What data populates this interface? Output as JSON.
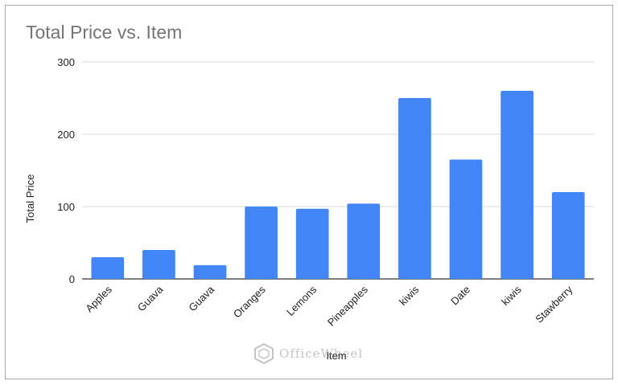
{
  "chart_data": {
    "type": "bar",
    "title": "Total Price vs. Item",
    "xlabel": "Item",
    "ylabel": "Total Price",
    "categories": [
      "Apples",
      "Guava",
      "Guava",
      "Oranges",
      "Lemons",
      "Pineapples",
      "kiwis",
      "Date",
      "kiwis",
      "Stawberry"
    ],
    "values": [
      30,
      40,
      19,
      100,
      97,
      104,
      250,
      165,
      260,
      120
    ],
    "ylim": [
      0,
      300
    ],
    "yticks": [
      0,
      100,
      200,
      300
    ],
    "grid": true,
    "bar_color": "#4285f4",
    "legend": "none"
  },
  "watermark": {
    "text": "OfficeWheel",
    "icon": "officewheel-logo-icon"
  }
}
